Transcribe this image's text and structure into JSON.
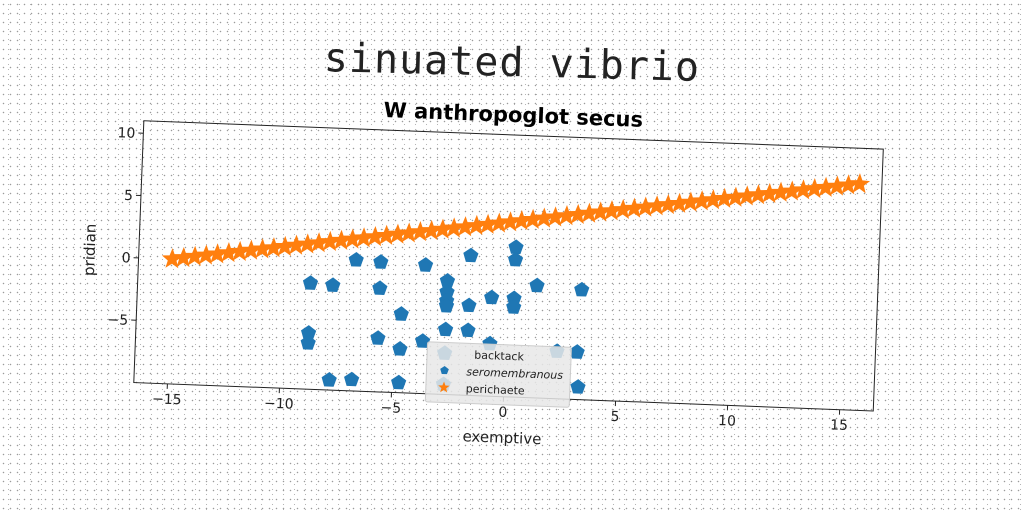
{
  "figure_title": "sinuated vibrio",
  "chart_data": {
    "type": "scatter",
    "title": "W anthropoglot secus",
    "xlabel": "exemptive",
    "ylabel": "pridian",
    "xlim": [
      -16.5,
      16.5
    ],
    "ylim": [
      -10,
      11
    ],
    "xticks": [
      -15,
      -10,
      -5,
      0,
      5,
      10,
      15
    ],
    "yticks": [
      -5,
      0,
      5,
      10
    ],
    "grid": false,
    "legend": {
      "title": "backtack",
      "placement": "lower-center"
    },
    "colors": {
      "seromembranous": "#1f77b4",
      "perichaete": "#ff7f0e"
    },
    "series": [
      {
        "name": "seromembranous",
        "marker": "pentagon",
        "points": [
          [
            0.3,
            2.0
          ],
          [
            0.3,
            1.0
          ],
          [
            -1.7,
            1.2
          ],
          [
            -6.8,
            0.5
          ],
          [
            -5.7,
            0.4
          ],
          [
            -3.7,
            0.3
          ],
          [
            -2.7,
            -0.9
          ],
          [
            -8.8,
            -1.5
          ],
          [
            -7.8,
            -1.6
          ],
          [
            -5.7,
            -1.7
          ],
          [
            -2.7,
            -1.8
          ],
          [
            -2.7,
            -2.5
          ],
          [
            -1.7,
            -2.8
          ],
          [
            -0.7,
            -2.1
          ],
          [
            0.3,
            -2.1
          ],
          [
            0.3,
            -2.8
          ],
          [
            1.3,
            -1.0
          ],
          [
            3.3,
            -1.2
          ],
          [
            -2.7,
            -2.9
          ],
          [
            -4.7,
            -3.7
          ],
          [
            -2.7,
            -4.8
          ],
          [
            -1.7,
            -4.8
          ],
          [
            -8.8,
            -5.5
          ],
          [
            -8.8,
            -6.3
          ],
          [
            -5.7,
            -5.7
          ],
          [
            -3.7,
            -5.8
          ],
          [
            -4.7,
            -6.5
          ],
          [
            -0.7,
            -5.8
          ],
          [
            -2.7,
            -6.7
          ],
          [
            2.3,
            -6.2
          ],
          [
            3.2,
            -6.2
          ],
          [
            -7.8,
            -9.2
          ],
          [
            -6.8,
            -9.1
          ],
          [
            -4.7,
            -9.2
          ],
          [
            -2.7,
            -9.2
          ],
          [
            3.3,
            -9.0
          ]
        ]
      },
      {
        "name": "perichaete",
        "marker": "star",
        "points": [
          [
            -15.0,
            0.0
          ],
          [
            -14.5,
            0.133
          ],
          [
            -14.0,
            0.267
          ],
          [
            -13.5,
            0.4
          ],
          [
            -13.0,
            0.533
          ],
          [
            -12.5,
            0.667
          ],
          [
            -12.0,
            0.8
          ],
          [
            -11.5,
            0.933
          ],
          [
            -11.0,
            1.067
          ],
          [
            -10.5,
            1.2
          ],
          [
            -10.0,
            1.333
          ],
          [
            -9.5,
            1.467
          ],
          [
            -9.0,
            1.6
          ],
          [
            -8.5,
            1.733
          ],
          [
            -8.0,
            1.867
          ],
          [
            -7.5,
            2.0
          ],
          [
            -7.0,
            2.133
          ],
          [
            -6.5,
            2.267
          ],
          [
            -6.0,
            2.4
          ],
          [
            -5.5,
            2.533
          ],
          [
            -5.0,
            2.667
          ],
          [
            -4.5,
            2.8
          ],
          [
            -4.0,
            2.933
          ],
          [
            -3.5,
            3.067
          ],
          [
            -3.0,
            3.2
          ],
          [
            -2.5,
            3.333
          ],
          [
            -2.0,
            3.467
          ],
          [
            -1.5,
            3.6
          ],
          [
            -1.0,
            3.733
          ],
          [
            -0.5,
            3.867
          ],
          [
            0.0,
            4.0
          ],
          [
            0.5,
            4.133
          ],
          [
            1.0,
            4.267
          ],
          [
            1.5,
            4.4
          ],
          [
            2.0,
            4.533
          ],
          [
            2.5,
            4.667
          ],
          [
            3.0,
            4.8
          ],
          [
            3.5,
            4.933
          ],
          [
            4.0,
            5.067
          ],
          [
            4.5,
            5.2
          ],
          [
            5.0,
            5.333
          ],
          [
            5.5,
            5.467
          ],
          [
            6.0,
            5.6
          ],
          [
            6.5,
            5.733
          ],
          [
            7.0,
            5.867
          ],
          [
            7.5,
            6.0
          ],
          [
            8.0,
            6.133
          ],
          [
            8.5,
            6.267
          ],
          [
            9.0,
            6.4
          ],
          [
            9.5,
            6.533
          ],
          [
            10.0,
            6.667
          ],
          [
            10.5,
            6.8
          ],
          [
            11.0,
            6.933
          ],
          [
            11.5,
            7.067
          ],
          [
            12.0,
            7.2
          ],
          [
            12.5,
            7.333
          ],
          [
            13.0,
            7.467
          ],
          [
            13.5,
            7.6
          ],
          [
            14.0,
            7.733
          ],
          [
            14.5,
            7.867
          ],
          [
            15.0,
            8.0
          ],
          [
            15.5,
            8.133
          ]
        ]
      }
    ]
  }
}
